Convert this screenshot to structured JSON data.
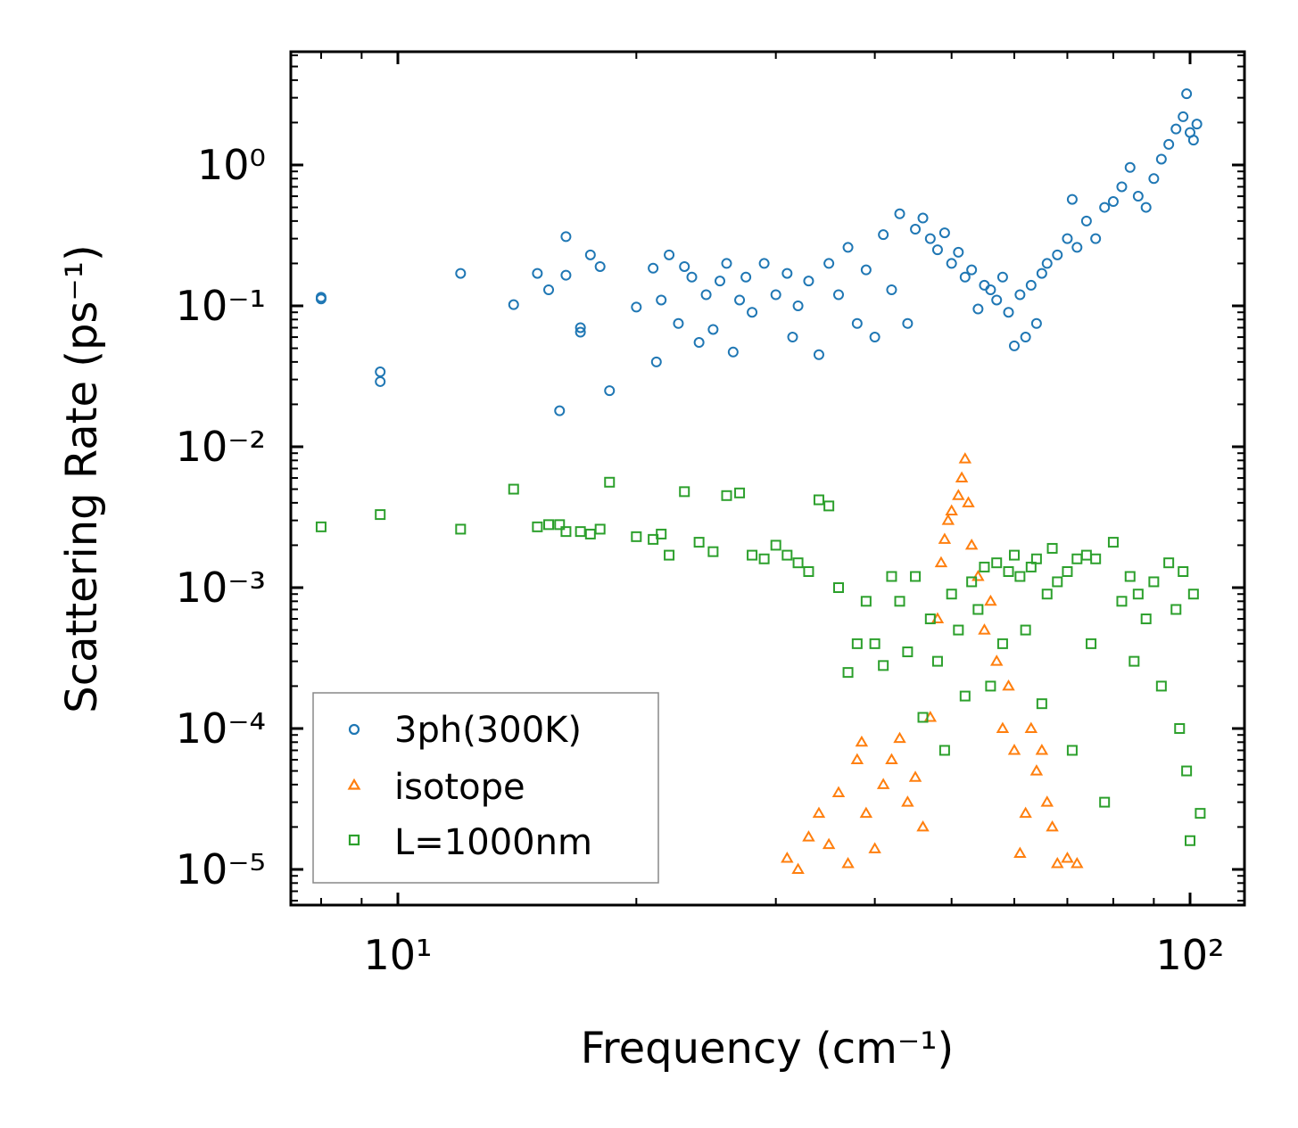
{
  "chart_data": {
    "type": "scatter",
    "title": "",
    "xlabel": "Frequency (cm⁻¹)",
    "ylabel": "Scattering Rate (ps⁻¹)",
    "xscale": "log",
    "yscale": "log",
    "xlim": [
      7.3,
      120
    ],
    "ylim": [
      5.5e-06,
      6.2
    ],
    "x_ticks": [
      {
        "value": 10,
        "label": "10¹"
      },
      {
        "value": 100,
        "label": "10²"
      }
    ],
    "y_ticks": [
      {
        "value": 1,
        "label": "10⁰"
      },
      {
        "value": 0.1,
        "label": "10⁻¹"
      },
      {
        "value": 0.01,
        "label": "10⁻²"
      },
      {
        "value": 0.001,
        "label": "10⁻³"
      },
      {
        "value": 0.0001,
        "label": "10⁻⁴"
      },
      {
        "value": 1e-05,
        "label": "10⁻⁵"
      }
    ],
    "legend_position": "bottom-left",
    "series": [
      {
        "name": "3ph(300K)",
        "marker": "circle",
        "color": "#1f77b4",
        "points": [
          [
            8,
            0.115
          ],
          [
            8,
            0.112
          ],
          [
            9.5,
            0.034
          ],
          [
            9.5,
            0.029
          ],
          [
            12,
            0.17
          ],
          [
            14,
            0.102
          ],
          [
            15,
            0.17
          ],
          [
            15.5,
            0.13
          ],
          [
            16,
            0.018
          ],
          [
            16.3,
            0.31
          ],
          [
            16.3,
            0.165
          ],
          [
            17,
            0.07
          ],
          [
            17,
            0.065
          ],
          [
            17.5,
            0.23
          ],
          [
            18,
            0.19
          ],
          [
            18.5,
            0.025
          ],
          [
            20,
            0.098
          ],
          [
            21,
            0.185
          ],
          [
            21.2,
            0.04
          ],
          [
            21.5,
            0.11
          ],
          [
            22,
            0.23
          ],
          [
            22.6,
            0.075
          ],
          [
            23,
            0.19
          ],
          [
            23.5,
            0.16
          ],
          [
            24,
            0.055
          ],
          [
            24.5,
            0.12
          ],
          [
            25,
            0.068
          ],
          [
            25.5,
            0.15
          ],
          [
            26,
            0.2
          ],
          [
            26.5,
            0.047
          ],
          [
            27,
            0.11
          ],
          [
            27.5,
            0.16
          ],
          [
            28,
            0.09
          ],
          [
            29,
            0.2
          ],
          [
            30,
            0.12
          ],
          [
            31,
            0.17
          ],
          [
            31.5,
            0.06
          ],
          [
            32,
            0.1
          ],
          [
            33,
            0.15
          ],
          [
            34,
            0.045
          ],
          [
            35,
            0.2
          ],
          [
            36,
            0.12
          ],
          [
            37,
            0.26
          ],
          [
            38,
            0.075
          ],
          [
            39,
            0.18
          ],
          [
            40,
            0.06
          ],
          [
            41,
            0.32
          ],
          [
            42,
            0.13
          ],
          [
            43,
            0.45
          ],
          [
            44,
            0.075
          ],
          [
            45,
            0.35
          ],
          [
            46,
            0.42
          ],
          [
            47,
            0.3
          ],
          [
            48,
            0.25
          ],
          [
            49,
            0.33
          ],
          [
            50,
            0.2
          ],
          [
            51,
            0.24
          ],
          [
            52,
            0.16
          ],
          [
            53,
            0.18
          ],
          [
            54,
            0.095
          ],
          [
            55,
            0.14
          ],
          [
            56,
            0.13
          ],
          [
            57,
            0.11
          ],
          [
            58,
            0.16
          ],
          [
            59,
            0.09
          ],
          [
            60,
            0.052
          ],
          [
            61,
            0.12
          ],
          [
            62,
            0.06
          ],
          [
            63,
            0.14
          ],
          [
            64,
            0.075
          ],
          [
            65,
            0.17
          ],
          [
            66,
            0.2
          ],
          [
            68,
            0.23
          ],
          [
            70,
            0.3
          ],
          [
            71,
            0.57
          ],
          [
            72,
            0.26
          ],
          [
            74,
            0.4
          ],
          [
            76,
            0.3
          ],
          [
            78,
            0.5
          ],
          [
            80,
            0.55
          ],
          [
            82,
            0.7
          ],
          [
            84,
            0.96
          ],
          [
            86,
            0.6
          ],
          [
            88,
            0.5
          ],
          [
            90,
            0.8
          ],
          [
            92,
            1.1
          ],
          [
            94,
            1.4
          ],
          [
            96,
            1.8
          ],
          [
            98,
            2.2
          ],
          [
            99,
            3.2
          ],
          [
            100,
            1.7
          ],
          [
            101,
            1.5
          ],
          [
            102,
            1.95
          ]
        ]
      },
      {
        "name": "isotope",
        "marker": "triangle",
        "color": "#ff7f0e",
        "points": [
          [
            31,
            1.2e-05
          ],
          [
            32,
            1e-05
          ],
          [
            33,
            1.7e-05
          ],
          [
            34,
            2.5e-05
          ],
          [
            35,
            1.5e-05
          ],
          [
            36,
            3.5e-05
          ],
          [
            37,
            1.1e-05
          ],
          [
            38,
            6e-05
          ],
          [
            38.5,
            8e-05
          ],
          [
            39,
            2.5e-05
          ],
          [
            40,
            1.4e-05
          ],
          [
            41,
            4e-05
          ],
          [
            42,
            6e-05
          ],
          [
            43,
            8.5e-05
          ],
          [
            44,
            3e-05
          ],
          [
            45,
            4.5e-05
          ],
          [
            46,
            2e-05
          ],
          [
            47,
            0.00012
          ],
          [
            48,
            0.0006
          ],
          [
            48.5,
            0.0015
          ],
          [
            49,
            0.0022
          ],
          [
            49.5,
            0.003
          ],
          [
            50,
            0.0035
          ],
          [
            51,
            0.0045
          ],
          [
            51.5,
            0.006
          ],
          [
            52,
            0.0082
          ],
          [
            52.5,
            0.004
          ],
          [
            53,
            0.002
          ],
          [
            54,
            0.0012
          ],
          [
            55,
            0.0005
          ],
          [
            56,
            0.0008
          ],
          [
            57,
            0.0003
          ],
          [
            58,
            0.0001
          ],
          [
            59,
            0.0002
          ],
          [
            60,
            7e-05
          ],
          [
            61,
            1.3e-05
          ],
          [
            62,
            2.5e-05
          ],
          [
            63,
            0.0001
          ],
          [
            64,
            5e-05
          ],
          [
            65,
            7e-05
          ],
          [
            66,
            3e-05
          ],
          [
            67,
            2e-05
          ],
          [
            68,
            1.1e-05
          ],
          [
            70,
            1.2e-05
          ],
          [
            72,
            1.1e-05
          ]
        ]
      },
      {
        "name": "L=1000nm",
        "marker": "square",
        "color": "#2ca02c",
        "points": [
          [
            8,
            0.0027
          ],
          [
            9.5,
            0.0033
          ],
          [
            12,
            0.0026
          ],
          [
            14,
            0.005
          ],
          [
            15,
            0.0027
          ],
          [
            15.5,
            0.0028
          ],
          [
            16,
            0.0028
          ],
          [
            16.3,
            0.0025
          ],
          [
            17,
            0.0025
          ],
          [
            17.5,
            0.0024
          ],
          [
            18,
            0.0026
          ],
          [
            18.5,
            0.0056
          ],
          [
            20,
            0.0023
          ],
          [
            21,
            0.0022
          ],
          [
            21.5,
            0.0024
          ],
          [
            22,
            0.0017
          ],
          [
            23,
            0.0048
          ],
          [
            24,
            0.0021
          ],
          [
            25,
            0.0018
          ],
          [
            26,
            0.0045
          ],
          [
            27,
            0.0047
          ],
          [
            28,
            0.0017
          ],
          [
            29,
            0.0016
          ],
          [
            30,
            0.002
          ],
          [
            31,
            0.0017
          ],
          [
            32,
            0.0015
          ],
          [
            33,
            0.0013
          ],
          [
            34,
            0.0042
          ],
          [
            35,
            0.0038
          ],
          [
            36,
            0.001
          ],
          [
            37,
            0.00025
          ],
          [
            38,
            0.0004
          ],
          [
            39,
            0.0008
          ],
          [
            40,
            0.0004
          ],
          [
            41,
            0.00028
          ],
          [
            42,
            0.0012
          ],
          [
            43,
            0.0008
          ],
          [
            44,
            0.00035
          ],
          [
            45,
            0.0012
          ],
          [
            46,
            0.00012
          ],
          [
            47,
            0.0006
          ],
          [
            48,
            0.0003
          ],
          [
            49,
            7e-05
          ],
          [
            50,
            0.0009
          ],
          [
            51,
            0.0005
          ],
          [
            52,
            0.00017
          ],
          [
            53,
            0.0011
          ],
          [
            54,
            0.0007
          ],
          [
            55,
            0.0014
          ],
          [
            56,
            0.0002
          ],
          [
            57,
            0.0015
          ],
          [
            58,
            0.0004
          ],
          [
            59,
            0.0013
          ],
          [
            60,
            0.0017
          ],
          [
            61,
            0.0012
          ],
          [
            62,
            0.0005
          ],
          [
            63,
            0.0014
          ],
          [
            64,
            0.0016
          ],
          [
            65,
            0.00015
          ],
          [
            66,
            0.0009
          ],
          [
            67,
            0.0019
          ],
          [
            68,
            0.0011
          ],
          [
            70,
            0.0013
          ],
          [
            71,
            7e-05
          ],
          [
            72,
            0.0016
          ],
          [
            74,
            0.0017
          ],
          [
            75,
            0.0004
          ],
          [
            76,
            0.0016
          ],
          [
            78,
            3e-05
          ],
          [
            80,
            0.0021
          ],
          [
            82,
            0.0008
          ],
          [
            84,
            0.0012
          ],
          [
            85,
            0.0003
          ],
          [
            86,
            0.0009
          ],
          [
            88,
            0.0006
          ],
          [
            90,
            0.0011
          ],
          [
            92,
            0.0002
          ],
          [
            94,
            0.0015
          ],
          [
            96,
            0.0007
          ],
          [
            97,
            0.0001
          ],
          [
            98,
            0.0013
          ],
          [
            99,
            5e-05
          ],
          [
            100,
            1.6e-05
          ],
          [
            101,
            0.0009
          ],
          [
            103,
            2.5e-05
          ]
        ]
      }
    ]
  }
}
